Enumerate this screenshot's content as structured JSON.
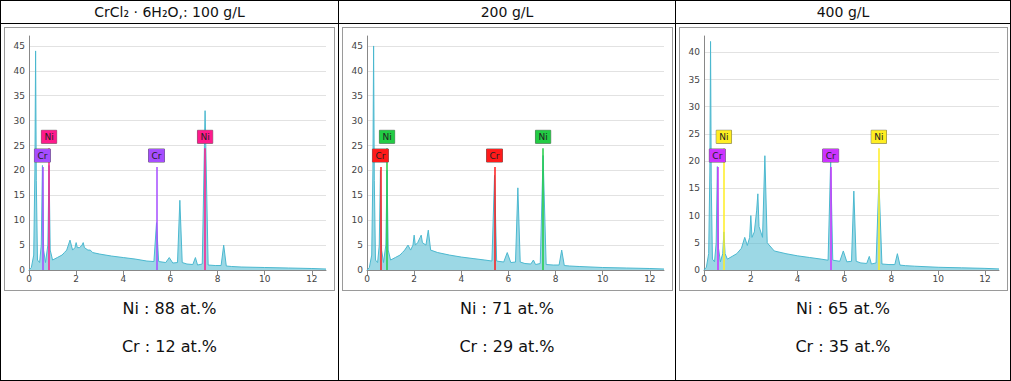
{
  "chart_data": [
    {
      "type": "line",
      "title": "CrCl₂ · 6H₂O,: 100 g/L",
      "color": "#4bb8cf",
      "grid": true,
      "xlim": [
        0,
        12.6
      ],
      "xticks": [
        0,
        2,
        4,
        6,
        8,
        10,
        12
      ],
      "ylim": [
        0,
        47
      ],
      "yticks": [
        0,
        5,
        10,
        15,
        20,
        25,
        30,
        35,
        40,
        45
      ],
      "x": [
        0,
        0.1,
        0.2,
        0.25,
        0.28,
        0.31,
        0.36,
        0.45,
        0.52,
        0.57,
        0.62,
        0.7,
        0.8,
        0.85,
        0.9,
        1.0,
        1.2,
        1.4,
        1.5,
        1.6,
        1.74,
        1.85,
        1.95,
        2.0,
        2.05,
        2.15,
        2.25,
        2.3,
        2.35,
        2.5,
        2.6,
        2.7,
        3.0,
        3.5,
        4.0,
        4.5,
        5.0,
        5.3,
        5.41,
        5.5,
        5.8,
        5.95,
        6.1,
        6.3,
        6.4,
        6.5,
        6.7,
        6.95,
        7.06,
        7.15,
        7.35,
        7.47,
        7.6,
        7.9,
        8.15,
        8.26,
        8.37,
        8.6,
        9.0,
        10,
        11,
        12,
        12.6
      ],
      "values": [
        0,
        0.5,
        3,
        20,
        44,
        18,
        2,
        1.5,
        5,
        21,
        4,
        1.5,
        5,
        21,
        4,
        2,
        2.5,
        3,
        3.5,
        4,
        6,
        4,
        4.5,
        5.5,
        4.5,
        4.5,
        5,
        5.5,
        4.5,
        4,
        4,
        3.5,
        3.2,
        2.8,
        2.5,
        2.2,
        1.8,
        1.7,
        9.5,
        1.7,
        1.5,
        2.5,
        1.4,
        1.5,
        14,
        1.5,
        1.2,
        1.1,
        2.5,
        1,
        1.2,
        32,
        1,
        0.9,
        0.9,
        5,
        0.8,
        0.7,
        0.6,
        0.5,
        0.4,
        0.3,
        0.2
      ],
      "peak_labels": [
        {
          "label": "Cr",
          "x": 0.57,
          "color": "#a64dff"
        },
        {
          "label": "Ni",
          "x": 0.85,
          "color": "#ff1a8c"
        },
        {
          "label": "Cr",
          "x": 5.41,
          "color": "#a64dff"
        },
        {
          "label": "Ni",
          "x": 7.47,
          "color": "#ff1a8c"
        }
      ],
      "annotations": [
        "Ni : 88 at.%",
        "Cr : 12 at.%"
      ]
    },
    {
      "type": "line",
      "title": "200 g/L",
      "color": "#4bb8cf",
      "grid": true,
      "xlim": [
        0,
        12.6
      ],
      "xticks": [
        0,
        2,
        4,
        6,
        8,
        10,
        12
      ],
      "ylim": [
        0,
        47
      ],
      "yticks": [
        0,
        5,
        10,
        15,
        20,
        25,
        30,
        35,
        40,
        45
      ],
      "x": [
        0,
        0.1,
        0.2,
        0.25,
        0.28,
        0.31,
        0.36,
        0.45,
        0.52,
        0.57,
        0.62,
        0.7,
        0.8,
        0.85,
        0.9,
        1.0,
        1.2,
        1.4,
        1.5,
        1.6,
        1.74,
        1.85,
        1.95,
        2.0,
        2.05,
        2.15,
        2.25,
        2.3,
        2.35,
        2.5,
        2.6,
        2.7,
        3.0,
        3.5,
        4.0,
        4.5,
        5.0,
        5.3,
        5.41,
        5.5,
        5.8,
        5.95,
        6.1,
        6.3,
        6.4,
        6.5,
        6.7,
        6.95,
        7.06,
        7.15,
        7.35,
        7.47,
        7.6,
        7.9,
        8.15,
        8.26,
        8.37,
        8.6,
        9.0,
        10,
        11,
        12,
        12.6
      ],
      "values": [
        0,
        0.5,
        3,
        20,
        45,
        18,
        2,
        1.5,
        5,
        20,
        4,
        1.5,
        5,
        20,
        4,
        2,
        2.5,
        3,
        3.5,
        4,
        5,
        4,
        5,
        7,
        5,
        5.5,
        6.5,
        7,
        5.5,
        5,
        8,
        4,
        3.5,
        3,
        2.6,
        2.3,
        2,
        1.8,
        19,
        1.8,
        1.6,
        3.5,
        1.5,
        1.6,
        16.5,
        1.6,
        1.3,
        1.2,
        2,
        1.1,
        1.3,
        23,
        1.1,
        1,
        1,
        4,
        0.9,
        0.8,
        0.7,
        0.5,
        0.4,
        0.3,
        0.2
      ],
      "peak_labels": [
        {
          "label": "Cr",
          "x": 0.57,
          "color": "#ff1a1a"
        },
        {
          "label": "Ni",
          "x": 0.85,
          "color": "#22cc44"
        },
        {
          "label": "Cr",
          "x": 5.41,
          "color": "#ff1a1a"
        },
        {
          "label": "Ni",
          "x": 7.47,
          "color": "#22cc44"
        }
      ],
      "annotations": [
        "Ni : 71 at.%",
        "Cr : 29 at.%"
      ]
    },
    {
      "type": "line",
      "title": "400 g/L",
      "color": "#4bb8cf",
      "grid": true,
      "xlim": [
        0,
        12.6
      ],
      "xticks": [
        0,
        2,
        4,
        6,
        8,
        10,
        12
      ],
      "ylim": [
        0,
        43
      ],
      "yticks": [
        0,
        5,
        10,
        15,
        20,
        25,
        30,
        35,
        40
      ],
      "x": [
        0,
        0.1,
        0.2,
        0.25,
        0.28,
        0.31,
        0.36,
        0.45,
        0.52,
        0.57,
        0.62,
        0.7,
        0.8,
        0.85,
        0.9,
        1.0,
        1.2,
        1.4,
        1.5,
        1.6,
        1.74,
        1.85,
        1.95,
        2.0,
        2.05,
        2.15,
        2.25,
        2.3,
        2.35,
        2.5,
        2.6,
        2.7,
        3.0,
        3.5,
        4.0,
        4.5,
        5.0,
        5.3,
        5.41,
        5.5,
        5.8,
        5.95,
        6.1,
        6.3,
        6.4,
        6.5,
        6.7,
        6.95,
        7.06,
        7.15,
        7.35,
        7.47,
        7.6,
        7.9,
        8.15,
        8.26,
        8.37,
        8.6,
        9.0,
        10,
        11,
        12,
        12.6
      ],
      "values": [
        0,
        0.5,
        3,
        18,
        42,
        16,
        2,
        1.5,
        5,
        19,
        4,
        1.5,
        3,
        7,
        3,
        2,
        2.5,
        3,
        3.5,
        4,
        6,
        4.5,
        6,
        10,
        6,
        7,
        11,
        14,
        8,
        6,
        21,
        5,
        3.5,
        3,
        2.6,
        2.3,
        2,
        1.8,
        20,
        1.8,
        1.6,
        3.5,
        1.5,
        1.6,
        14.5,
        1.6,
        1.3,
        1.2,
        2.5,
        1.1,
        1.3,
        16.5,
        1.1,
        1,
        1,
        3,
        0.9,
        0.8,
        0.7,
        0.5,
        0.4,
        0.3,
        0.2
      ],
      "peak_labels": [
        {
          "label": "Cr",
          "x": 0.57,
          "color": "#cc33ff"
        },
        {
          "label": "Ni",
          "x": 0.85,
          "color": "#ffee22"
        },
        {
          "label": "Cr",
          "x": 5.41,
          "color": "#cc33ff"
        },
        {
          "label": "Ni",
          "x": 7.47,
          "color": "#ffee22"
        }
      ],
      "annotations": [
        "Ni : 65 at.%",
        "Cr : 35 at.%"
      ]
    }
  ]
}
